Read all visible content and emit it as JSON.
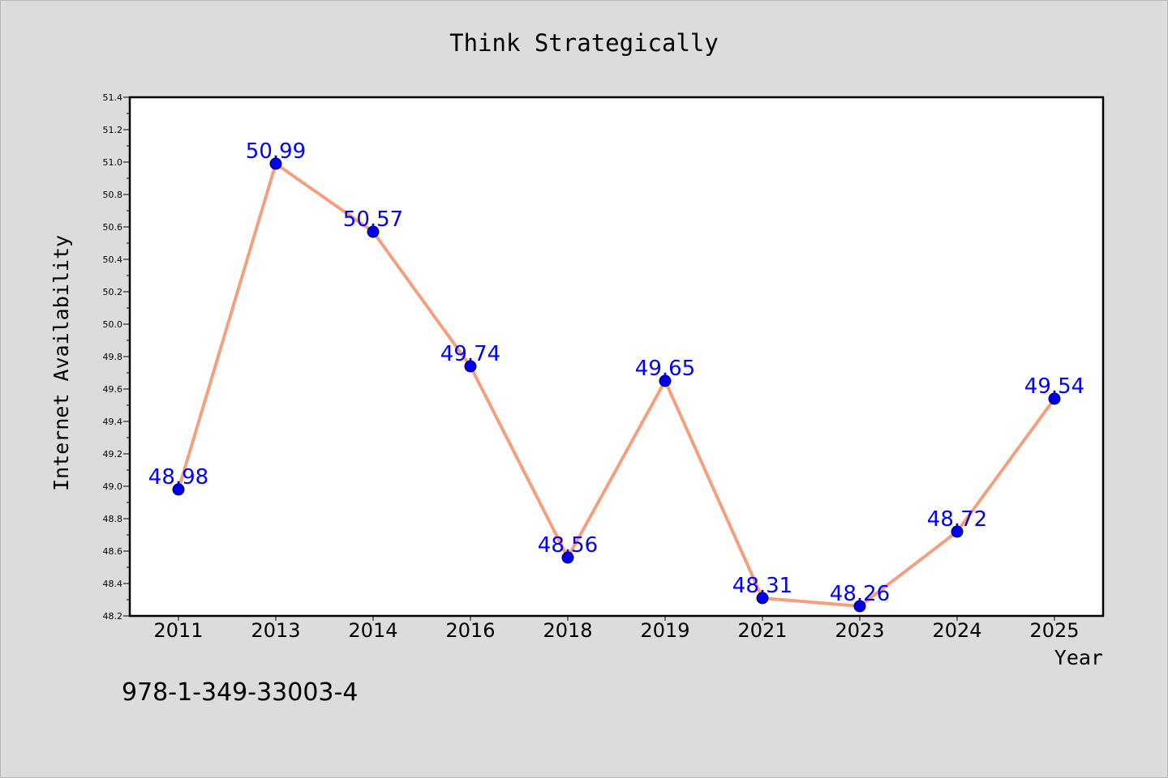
{
  "chart_data": {
    "type": "line",
    "title": "Think Strategically",
    "xlabel": "Year",
    "ylabel": "Internet Availability",
    "categories": [
      "2011",
      "2013",
      "2014",
      "2016",
      "2018",
      "2019",
      "2021",
      "2023",
      "2024",
      "2025"
    ],
    "series": [
      {
        "values": [
          48.98,
          50.99,
          50.57,
          49.74,
          48.56,
          49.65,
          48.31,
          48.26,
          48.72,
          49.54
        ]
      }
    ],
    "ylim": [
      48.2,
      51.4
    ],
    "yticks": [
      "48.2",
      "48.4",
      "48.6",
      "48.8",
      "49.0",
      "49.2",
      "49.4",
      "49.6",
      "49.8",
      "50.0",
      "50.2",
      "50.4",
      "50.6",
      "50.8",
      "51.0",
      "51.2",
      "51.4"
    ],
    "data_labels": [
      "48.98",
      "50.99",
      "50.57",
      "49.74",
      "48.56",
      "49.65",
      "48.31",
      "48.26",
      "48.72",
      "49.54"
    ],
    "grid": false,
    "legend": "none",
    "colors": {
      "line": "#f4a07e",
      "marker": "#0000ee",
      "marker_edge": "#000033",
      "label": "#0000ff",
      "background": "#dcdcdc",
      "plot_background": "#ffffff"
    }
  },
  "footer": {
    "isbn": "978-1-349-33003-4"
  }
}
